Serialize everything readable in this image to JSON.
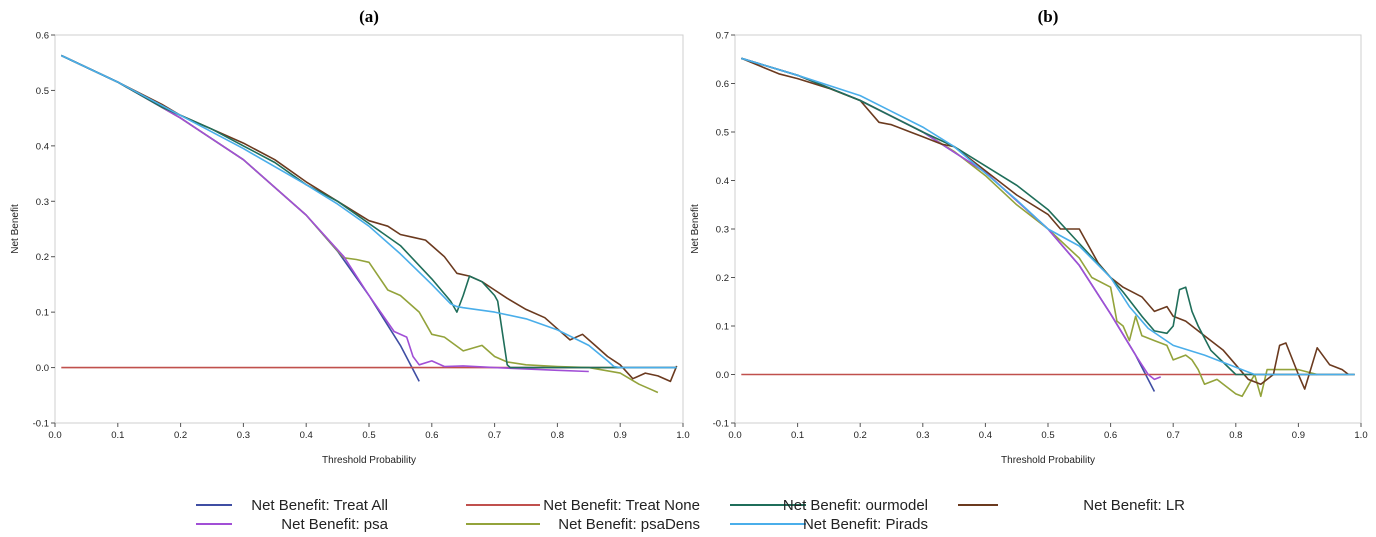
{
  "colors": {
    "treat_all": "#3f4ea3",
    "treat_none": "#c0504d",
    "ourmodel": "#1f6e5a",
    "lr": "#6b3a1f",
    "psa": "#a14fd6",
    "psaDens": "#93a33b",
    "pirads": "#4aaeea"
  },
  "legend": [
    {
      "key": "treat_all",
      "label": "Net Benefit: Treat All"
    },
    {
      "key": "treat_none",
      "label": "Net Benefit: Treat None"
    },
    {
      "key": "ourmodel",
      "label": "Net Benefit: ourmodel"
    },
    {
      "key": "lr",
      "label": "Net Benefit: LR"
    },
    {
      "key": "psa",
      "label": "Net Benefit: psa"
    },
    {
      "key": "psaDens",
      "label": "Net Benefit: psaDens"
    },
    {
      "key": "pirads",
      "label": "Net Benefit: Pirads"
    }
  ],
  "chart_data": [
    {
      "type": "line",
      "title": "(a)",
      "xlabel": "Threshold Probability",
      "ylabel": "Net Benefit",
      "xlim": [
        0,
        1
      ],
      "ylim": [
        -0.1,
        0.6
      ],
      "xticks": [
        "0.0",
        "0.1",
        "0.2",
        "0.3",
        "0.4",
        "0.5",
        "0.6",
        "0.7",
        "0.8",
        "0.9",
        "1.0"
      ],
      "yticks": [
        "-0.1",
        "0.0",
        "0.1",
        "0.2",
        "0.3",
        "0.4",
        "0.5",
        "0.6"
      ],
      "series": [
        {
          "key": "treat_all",
          "x": [
            0.01,
            0.1,
            0.2,
            0.3,
            0.4,
            0.45,
            0.5,
            0.55,
            0.58
          ],
          "y": [
            0.563,
            0.515,
            0.45,
            0.375,
            0.275,
            0.21,
            0.13,
            0.04,
            -0.025
          ]
        },
        {
          "key": "treat_none",
          "x": [
            0.01,
            0.99
          ],
          "y": [
            0,
            0
          ]
        },
        {
          "key": "psa",
          "x": [
            0.01,
            0.1,
            0.2,
            0.3,
            0.4,
            0.46,
            0.5,
            0.54,
            0.56,
            0.57,
            0.58,
            0.6,
            0.62,
            0.65,
            0.7,
            0.8,
            0.85
          ],
          "y": [
            0.563,
            0.515,
            0.45,
            0.375,
            0.275,
            0.2,
            0.13,
            0.065,
            0.055,
            0.02,
            0.005,
            0.012,
            0.002,
            0.003,
            0.0,
            -0.005,
            -0.007
          ]
        },
        {
          "key": "psaDens",
          "x": [
            0.01,
            0.1,
            0.2,
            0.3,
            0.4,
            0.46,
            0.48,
            0.5,
            0.53,
            0.55,
            0.58,
            0.6,
            0.62,
            0.65,
            0.68,
            0.7,
            0.72,
            0.75,
            0.8,
            0.85,
            0.9,
            0.93,
            0.95,
            0.96
          ],
          "y": [
            0.563,
            0.515,
            0.45,
            0.375,
            0.275,
            0.198,
            0.195,
            0.19,
            0.14,
            0.13,
            0.1,
            0.06,
            0.055,
            0.03,
            0.04,
            0.02,
            0.01,
            0.005,
            0.002,
            0.0,
            -0.01,
            -0.03,
            -0.04,
            -0.045
          ]
        },
        {
          "key": "lr",
          "x": [
            0.01,
            0.1,
            0.17,
            0.2,
            0.25,
            0.3,
            0.35,
            0.4,
            0.45,
            0.5,
            0.53,
            0.55,
            0.57,
            0.59,
            0.6,
            0.62,
            0.64,
            0.66,
            0.68,
            0.7,
            0.72,
            0.75,
            0.78,
            0.8,
            0.82,
            0.84,
            0.86,
            0.88,
            0.9,
            0.92,
            0.94,
            0.96,
            0.98,
            0.99
          ],
          "y": [
            0.563,
            0.515,
            0.475,
            0.455,
            0.43,
            0.405,
            0.375,
            0.335,
            0.3,
            0.265,
            0.255,
            0.24,
            0.235,
            0.23,
            0.22,
            0.2,
            0.17,
            0.165,
            0.155,
            0.14,
            0.125,
            0.105,
            0.09,
            0.07,
            0.05,
            0.06,
            0.04,
            0.02,
            0.005,
            -0.02,
            -0.01,
            -0.015,
            -0.025,
            0.003
          ]
        },
        {
          "key": "ourmodel",
          "x": [
            0.01,
            0.1,
            0.17,
            0.18,
            0.2,
            0.25,
            0.3,
            0.35,
            0.4,
            0.45,
            0.5,
            0.55,
            0.6,
            0.63,
            0.64,
            0.65,
            0.66,
            0.68,
            0.7,
            0.705,
            0.72,
            0.725,
            0.8,
            0.9,
            0.99
          ],
          "y": [
            0.563,
            0.515,
            0.47,
            0.465,
            0.455,
            0.43,
            0.4,
            0.37,
            0.33,
            0.3,
            0.26,
            0.22,
            0.16,
            0.12,
            0.1,
            0.13,
            0.165,
            0.155,
            0.13,
            0.12,
            0.005,
            0.0,
            0.0,
            0.0,
            0.0
          ]
        },
        {
          "key": "pirads",
          "x": [
            0.01,
            0.1,
            0.2,
            0.3,
            0.4,
            0.45,
            0.5,
            0.55,
            0.6,
            0.63,
            0.64,
            0.65,
            0.7,
            0.75,
            0.8,
            0.85,
            0.88,
            0.89,
            0.9,
            0.95,
            0.99
          ],
          "y": [
            0.563,
            0.515,
            0.455,
            0.395,
            0.33,
            0.295,
            0.255,
            0.205,
            0.15,
            0.115,
            0.11,
            0.108,
            0.1,
            0.088,
            0.068,
            0.04,
            0.012,
            0.002,
            0.0,
            0.0,
            0.0
          ]
        }
      ]
    },
    {
      "type": "line",
      "title": "(b)",
      "xlabel": "Threshold Probability",
      "ylabel": "Net Benefit",
      "xlim": [
        0,
        1
      ],
      "ylim": [
        -0.1,
        0.7
      ],
      "xticks": [
        "0.0",
        "0.1",
        "0.2",
        "0.3",
        "0.4",
        "0.5",
        "0.6",
        "0.7",
        "0.8",
        "0.9",
        "1.0"
      ],
      "yticks": [
        "-0.1",
        "0.0",
        "0.1",
        "0.2",
        "0.3",
        "0.4",
        "0.5",
        "0.6",
        "0.7"
      ],
      "series": [
        {
          "key": "treat_all",
          "x": [
            0.01,
            0.1,
            0.2,
            0.3,
            0.4,
            0.5,
            0.55,
            0.6,
            0.64,
            0.67
          ],
          "y": [
            0.652,
            0.617,
            0.565,
            0.5,
            0.417,
            0.3,
            0.225,
            0.125,
            0.04,
            -0.035
          ]
        },
        {
          "key": "treat_none",
          "x": [
            0.01,
            0.99
          ],
          "y": [
            0,
            0
          ]
        },
        {
          "key": "psa",
          "x": [
            0.01,
            0.1,
            0.2,
            0.3,
            0.4,
            0.5,
            0.55,
            0.6,
            0.64,
            0.66,
            0.67,
            0.68
          ],
          "y": [
            0.652,
            0.617,
            0.565,
            0.5,
            0.417,
            0.3,
            0.225,
            0.125,
            0.04,
            0.0,
            -0.01,
            -0.005
          ]
        },
        {
          "key": "psaDens",
          "x": [
            0.01,
            0.1,
            0.2,
            0.3,
            0.35,
            0.4,
            0.45,
            0.5,
            0.55,
            0.57,
            0.6,
            0.61,
            0.62,
            0.63,
            0.64,
            0.65,
            0.67,
            0.69,
            0.7,
            0.72,
            0.73,
            0.74,
            0.75,
            0.77,
            0.78,
            0.8,
            0.81,
            0.83,
            0.84,
            0.85,
            0.88,
            0.9,
            0.93
          ],
          "y": [
            0.652,
            0.617,
            0.565,
            0.5,
            0.46,
            0.41,
            0.35,
            0.3,
            0.24,
            0.2,
            0.18,
            0.11,
            0.1,
            0.07,
            0.12,
            0.08,
            0.07,
            0.06,
            0.03,
            0.04,
            0.03,
            0.01,
            -0.02,
            -0.01,
            -0.02,
            -0.04,
            -0.045,
            0.0,
            -0.045,
            0.01,
            0.01,
            0.01,
            0.0
          ]
        },
        {
          "key": "lr",
          "x": [
            0.01,
            0.07,
            0.1,
            0.15,
            0.2,
            0.23,
            0.25,
            0.28,
            0.3,
            0.33,
            0.35,
            0.4,
            0.45,
            0.5,
            0.52,
            0.55,
            0.58,
            0.6,
            0.62,
            0.65,
            0.67,
            0.69,
            0.7,
            0.72,
            0.74,
            0.76,
            0.78,
            0.8,
            0.82,
            0.84,
            0.86,
            0.87,
            0.88,
            0.9,
            0.91,
            0.93,
            0.95,
            0.97,
            0.98
          ],
          "y": [
            0.652,
            0.62,
            0.61,
            0.59,
            0.565,
            0.52,
            0.515,
            0.5,
            0.49,
            0.475,
            0.47,
            0.42,
            0.37,
            0.33,
            0.3,
            0.3,
            0.23,
            0.2,
            0.18,
            0.16,
            0.13,
            0.14,
            0.12,
            0.11,
            0.09,
            0.07,
            0.05,
            0.02,
            -0.01,
            -0.02,
            0.0,
            0.06,
            0.065,
            0.0,
            -0.03,
            0.055,
            0.02,
            0.01,
            0.0
          ]
        },
        {
          "key": "ourmodel",
          "x": [
            0.01,
            0.1,
            0.2,
            0.3,
            0.35,
            0.4,
            0.45,
            0.5,
            0.55,
            0.6,
            0.62,
            0.65,
            0.67,
            0.69,
            0.7,
            0.71,
            0.72,
            0.73,
            0.74,
            0.76,
            0.8,
            0.85,
            0.9,
            0.99
          ],
          "y": [
            0.652,
            0.617,
            0.565,
            0.5,
            0.47,
            0.43,
            0.39,
            0.34,
            0.27,
            0.2,
            0.17,
            0.12,
            0.09,
            0.085,
            0.1,
            0.175,
            0.18,
            0.13,
            0.1,
            0.05,
            0.0,
            0.0,
            0.0,
            0.0
          ]
        },
        {
          "key": "pirads",
          "x": [
            0.01,
            0.1,
            0.2,
            0.3,
            0.35,
            0.4,
            0.45,
            0.5,
            0.55,
            0.6,
            0.63,
            0.66,
            0.7,
            0.75,
            0.8,
            0.83,
            0.85,
            0.9,
            0.99
          ],
          "y": [
            0.652,
            0.617,
            0.575,
            0.51,
            0.47,
            0.415,
            0.36,
            0.3,
            0.265,
            0.2,
            0.14,
            0.095,
            0.06,
            0.04,
            0.015,
            0.0,
            0.0,
            0.0,
            0.0
          ]
        }
      ]
    }
  ]
}
